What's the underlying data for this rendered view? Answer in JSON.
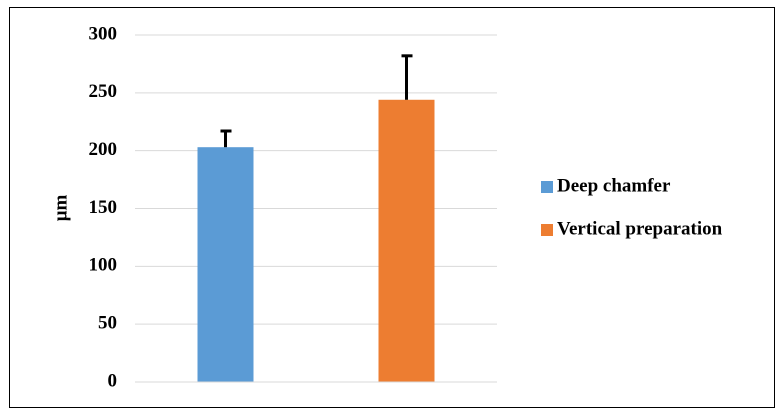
{
  "chart_data": {
    "type": "bar",
    "y_label": "µm",
    "categories": [
      null
    ],
    "series": [
      {
        "name": "Deep chamfer",
        "color": "#5b9bd5",
        "values": [
          203
        ],
        "errors": [
          14
        ]
      },
      {
        "name": "Vertical preparation",
        "color": "#ed7d31",
        "values": [
          244
        ],
        "errors": [
          38
        ]
      }
    ],
    "ylim": [
      0,
      300
    ],
    "yticks": [
      0,
      50,
      100,
      150,
      200,
      250,
      300
    ],
    "grid": true,
    "legend": "right"
  }
}
